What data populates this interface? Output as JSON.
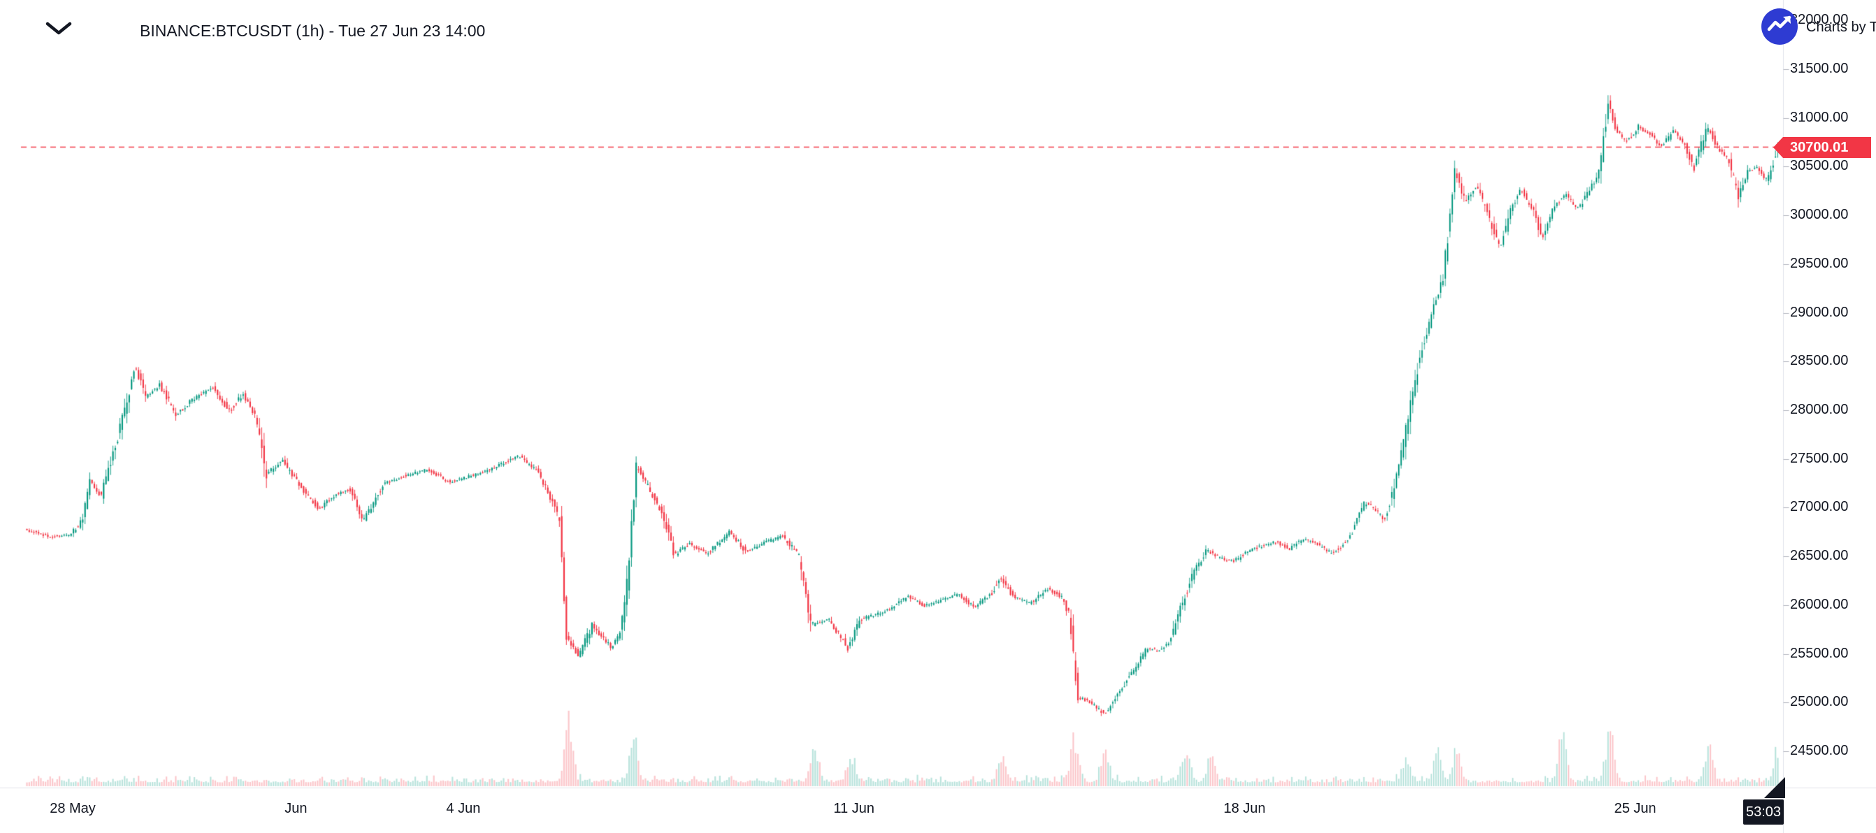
{
  "header": {
    "title": "BINANCE:BTCUSDT (1h) - Tue 27 Jun 23 14:00"
  },
  "attribution": {
    "text": "Charts by TradingView",
    "logo_color": "#2E3BD2"
  },
  "last_price": {
    "label": "30700.01",
    "value": 30700.01
  },
  "countdown": {
    "label": "53:03"
  },
  "colors": {
    "up": "#089981",
    "down": "#F23645",
    "up_volume": "rgba(8,153,129,0.28)",
    "down_volume": "rgba(242,54,69,0.28)",
    "text": "#131722",
    "axis_border": "#E0E3EB",
    "tick": "#B2B5BE",
    "last_price_line": "#F23645",
    "countdown_bg": "#131722"
  },
  "chart_data": {
    "type": "candlestick",
    "symbol": "BINANCE:BTCUSDT",
    "interval": "1h",
    "title": "BINANCE:BTCUSDT (1h) - Tue 27 Jun 23 14:00",
    "timestamp_label": "Tue 27 Jun 23 14:00",
    "last_price": 30700.01,
    "ylim": [
      24300,
      32150
    ],
    "grid": false,
    "legend_position": "top-left",
    "price_axis_ticks": [
      {
        "value": 32000,
        "label": "32000.00"
      },
      {
        "value": 31500,
        "label": "31500.00"
      },
      {
        "value": 31000,
        "label": "31000.00"
      },
      {
        "value": 30500,
        "label": "30500.00"
      },
      {
        "value": 30000,
        "label": "30000.00"
      },
      {
        "value": 29500,
        "label": "29500.00"
      },
      {
        "value": 29000,
        "label": "29000.00"
      },
      {
        "value": 28500,
        "label": "28500.00"
      },
      {
        "value": 28000,
        "label": "28000.00"
      },
      {
        "value": 27500,
        "label": "27500.00"
      },
      {
        "value": 27000,
        "label": "27000.00"
      },
      {
        "value": 26500,
        "label": "26500.00"
      },
      {
        "value": 26000,
        "label": "26000.00"
      },
      {
        "value": 25500,
        "label": "25500.00"
      },
      {
        "value": 25000,
        "label": "25000.00"
      },
      {
        "value": 24500,
        "label": "24500.00"
      }
    ],
    "time_axis_ticks": [
      {
        "label": "28 May",
        "d": 0
      },
      {
        "label": "Jun",
        "d": 4
      },
      {
        "label": "4 Jun",
        "d": 7
      },
      {
        "label": "11 Jun",
        "d": 14
      },
      {
        "label": "18 Jun",
        "d": 21
      },
      {
        "label": "25 Jun",
        "d": 28
      }
    ],
    "time_reference": "d = days since 28 May 2023 00:00, series ends Tue 27 Jun 23 14:00",
    "price_path": [
      [
        -0.82,
        26780
      ],
      [
        -0.4,
        26700
      ],
      [
        0.0,
        26720
      ],
      [
        0.2,
        26860
      ],
      [
        0.35,
        27280
      ],
      [
        0.55,
        27120
      ],
      [
        0.8,
        27620
      ],
      [
        1.0,
        28060
      ],
      [
        1.16,
        28470
      ],
      [
        1.35,
        28140
      ],
      [
        1.6,
        28260
      ],
      [
        1.9,
        27950
      ],
      [
        2.2,
        28120
      ],
      [
        2.55,
        28230
      ],
      [
        2.85,
        27990
      ],
      [
        3.1,
        28170
      ],
      [
        3.35,
        27880
      ],
      [
        3.5,
        27340
      ],
      [
        3.8,
        27480
      ],
      [
        4.1,
        27230
      ],
      [
        4.45,
        26990
      ],
      [
        4.75,
        27130
      ],
      [
        5.0,
        27190
      ],
      [
        5.25,
        26870
      ],
      [
        5.6,
        27240
      ],
      [
        5.95,
        27320
      ],
      [
        6.4,
        27390
      ],
      [
        6.8,
        27260
      ],
      [
        7.2,
        27330
      ],
      [
        7.6,
        27410
      ],
      [
        8.03,
        27530
      ],
      [
        8.35,
        27380
      ],
      [
        8.67,
        27030
      ],
      [
        8.78,
        26820
      ],
      [
        8.88,
        25680
      ],
      [
        9.1,
        25480
      ],
      [
        9.35,
        25790
      ],
      [
        9.68,
        25570
      ],
      [
        9.85,
        25700
      ],
      [
        10.0,
        26320
      ],
      [
        10.13,
        27430
      ],
      [
        10.3,
        27260
      ],
      [
        10.6,
        26950
      ],
      [
        10.82,
        26510
      ],
      [
        11.1,
        26630
      ],
      [
        11.4,
        26520
      ],
      [
        11.82,
        26760
      ],
      [
        12.1,
        26550
      ],
      [
        12.45,
        26640
      ],
      [
        12.75,
        26710
      ],
      [
        13.05,
        26520
      ],
      [
        13.28,
        25790
      ],
      [
        13.6,
        25850
      ],
      [
        13.93,
        25560
      ],
      [
        14.15,
        25850
      ],
      [
        14.36,
        25890
      ],
      [
        14.7,
        25960
      ],
      [
        15.0,
        26090
      ],
      [
        15.3,
        25990
      ],
      [
        15.6,
        26050
      ],
      [
        15.9,
        26110
      ],
      [
        16.2,
        25980
      ],
      [
        16.5,
        26110
      ],
      [
        16.65,
        26290
      ],
      [
        16.9,
        26080
      ],
      [
        17.2,
        26020
      ],
      [
        17.5,
        26170
      ],
      [
        17.75,
        26090
      ],
      [
        17.9,
        25890
      ],
      [
        18.05,
        25060
      ],
      [
        18.3,
        24990
      ],
      [
        18.54,
        24880
      ],
      [
        18.8,
        25110
      ],
      [
        19.05,
        25340
      ],
      [
        19.29,
        25560
      ],
      [
        19.5,
        25530
      ],
      [
        19.7,
        25630
      ],
      [
        19.93,
        26030
      ],
      [
        20.15,
        26360
      ],
      [
        20.36,
        26570
      ],
      [
        20.6,
        26480
      ],
      [
        20.85,
        26450
      ],
      [
        21.1,
        26550
      ],
      [
        21.35,
        26610
      ],
      [
        21.6,
        26650
      ],
      [
        21.85,
        26580
      ],
      [
        22.1,
        26690
      ],
      [
        22.35,
        26620
      ],
      [
        22.6,
        26530
      ],
      [
        22.79,
        26610
      ],
      [
        22.98,
        26760
      ],
      [
        23.2,
        27060
      ],
      [
        23.37,
        26990
      ],
      [
        23.55,
        26880
      ],
      [
        23.69,
        27160
      ],
      [
        23.85,
        27560
      ],
      [
        24.01,
        28060
      ],
      [
        24.2,
        28610
      ],
      [
        24.44,
        29060
      ],
      [
        24.6,
        29360
      ],
      [
        24.81,
        30480
      ],
      [
        25.0,
        30120
      ],
      [
        25.19,
        30310
      ],
      [
        25.4,
        30010
      ],
      [
        25.62,
        29660
      ],
      [
        25.8,
        30060
      ],
      [
        25.99,
        30260
      ],
      [
        26.2,
        30060
      ],
      [
        26.37,
        29760
      ],
      [
        26.6,
        30110
      ],
      [
        26.8,
        30210
      ],
      [
        27.0,
        30060
      ],
      [
        27.23,
        30260
      ],
      [
        27.4,
        30460
      ],
      [
        27.55,
        31150
      ],
      [
        27.7,
        30860
      ],
      [
        27.9,
        30760
      ],
      [
        28.1,
        30910
      ],
      [
        28.3,
        30830
      ],
      [
        28.5,
        30710
      ],
      [
        28.73,
        30860
      ],
      [
        28.9,
        30760
      ],
      [
        29.1,
        30490
      ],
      [
        29.33,
        30910
      ],
      [
        29.5,
        30710
      ],
      [
        29.7,
        30570
      ],
      [
        29.89,
        30210
      ],
      [
        30.05,
        30460
      ],
      [
        30.23,
        30490
      ],
      [
        30.4,
        30360
      ],
      [
        30.6,
        30700.01
      ]
    ],
    "volume_spikes": [
      [
        8.88,
        0.95
      ],
      [
        10.05,
        0.75
      ],
      [
        13.3,
        0.55
      ],
      [
        13.95,
        0.45
      ],
      [
        16.65,
        0.4
      ],
      [
        17.95,
        0.7
      ],
      [
        18.5,
        0.45
      ],
      [
        19.95,
        0.5
      ],
      [
        20.4,
        0.4
      ],
      [
        23.9,
        0.35
      ],
      [
        24.45,
        0.5
      ],
      [
        24.8,
        0.55
      ],
      [
        26.7,
        0.8
      ],
      [
        27.55,
        0.85
      ],
      [
        29.33,
        0.45
      ],
      [
        30.55,
        0.5
      ]
    ],
    "render_seed": 13
  }
}
